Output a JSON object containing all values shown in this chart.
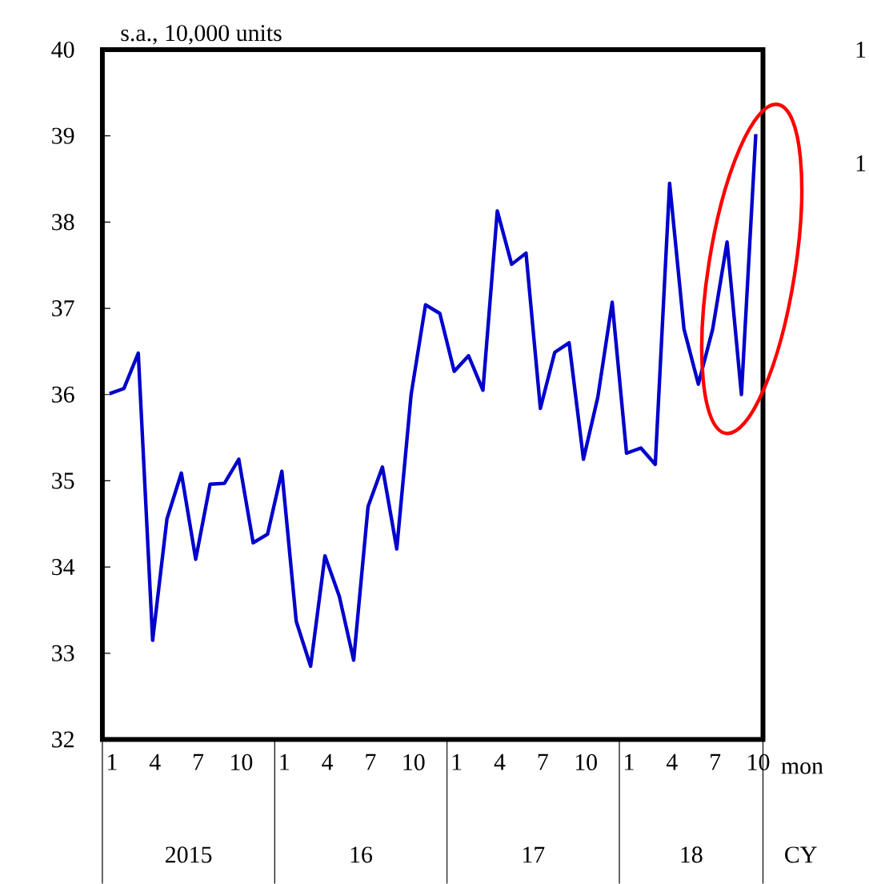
{
  "chart_data": {
    "type": "line",
    "ylabel": "s.a., 10,000 units",
    "categories": [
      "1",
      null,
      null,
      "4",
      null,
      null,
      "7",
      null,
      null,
      "10",
      null,
      null,
      "1",
      null,
      null,
      "4",
      null,
      null,
      "7",
      null,
      null,
      "10",
      null,
      null,
      "1",
      null,
      null,
      "4",
      null,
      null,
      "7",
      null,
      null,
      "10",
      null,
      null,
      "1",
      null,
      null,
      "4",
      null,
      null,
      "7",
      null,
      null,
      "10"
    ],
    "values": [
      36.01,
      36.07,
      36.48,
      33.15,
      34.56,
      35.09,
      34.09,
      34.96,
      34.97,
      35.25,
      34.28,
      34.38,
      35.11,
      33.37,
      32.85,
      34.13,
      33.66,
      32.92,
      34.7,
      35.16,
      34.21,
      36.0,
      37.04,
      36.94,
      36.27,
      36.45,
      36.05,
      38.13,
      37.51,
      37.64,
      35.84,
      36.49,
      36.6,
      35.25,
      35.97,
      37.07,
      35.32,
      35.38,
      35.19,
      38.45,
      36.76,
      36.12,
      36.76,
      37.77,
      36.0,
      39.02
    ],
    "color": "#0000cc",
    "marker": "none",
    "line_style": "solid",
    "ylim": [
      32,
      40
    ],
    "yticks": [
      32,
      33,
      34,
      35,
      36,
      37,
      38,
      39,
      40
    ],
    "annotations": [
      "2015",
      "16",
      "17",
      "18",
      "mon",
      "CY",
      "1",
      "1"
    ]
  }
}
